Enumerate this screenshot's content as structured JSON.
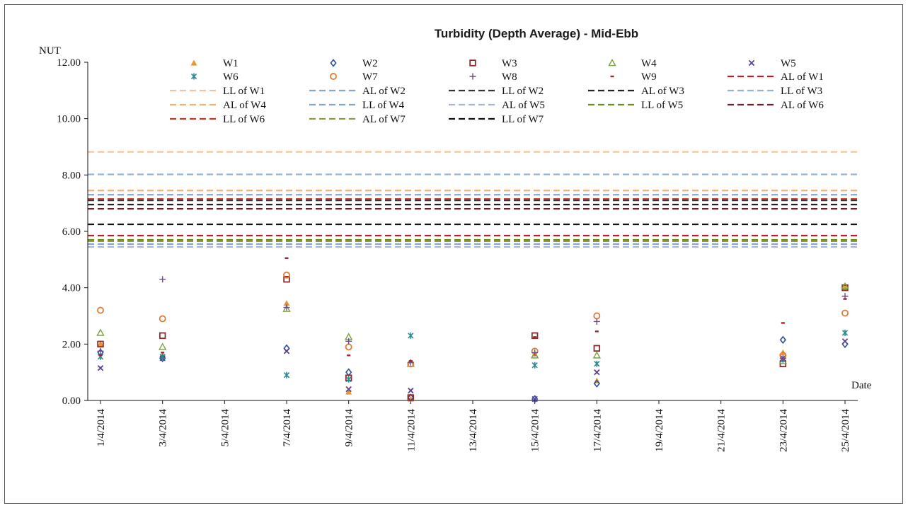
{
  "chart_data": {
    "type": "scatter",
    "title": "Turbidity (Depth Average) - Mid-Ebb",
    "ylabel": "NUT",
    "xlabel": "Date",
    "ylim": [
      0,
      12
    ],
    "y_ticks": [
      "0.00",
      "2.00",
      "4.00",
      "6.00",
      "8.00",
      "10.00",
      "12.00"
    ],
    "x_ticks": [
      "1/4/2014",
      "3/4/2014",
      "5/4/2014",
      "7/4/2014",
      "9/4/2014",
      "11/4/2014",
      "13/4/2014",
      "15/4/2014",
      "17/4/2014",
      "19/4/2014",
      "21/4/2014",
      "23/4/2014",
      "25/4/2014"
    ],
    "x_range_days": [
      1,
      25
    ],
    "grid": false,
    "legend_position": "top",
    "series": [
      {
        "name": "W1",
        "marker": "triangle-filled",
        "color": "#E8962E",
        "points": [
          [
            1,
            2.0
          ],
          [
            3,
            1.6
          ],
          [
            7,
            3.45
          ],
          [
            9,
            0.3
          ],
          [
            11,
            0.05
          ],
          [
            15,
            1.65
          ],
          [
            17,
            0.7
          ],
          [
            23,
            1.7
          ],
          [
            25,
            4.0
          ]
        ]
      },
      {
        "name": "W2",
        "marker": "diamond",
        "color": "#2E4FA0",
        "points": [
          [
            1,
            1.7
          ],
          [
            3,
            1.5
          ],
          [
            7,
            1.85
          ],
          [
            9,
            1.0
          ],
          [
            11,
            0.1
          ],
          [
            15,
            0.05
          ],
          [
            17,
            0.6
          ],
          [
            23,
            2.15
          ],
          [
            25,
            2.0
          ]
        ]
      },
      {
        "name": "W3",
        "marker": "square",
        "color": "#8B2B2B",
        "points": [
          [
            1,
            2.0
          ],
          [
            3,
            2.3
          ],
          [
            7,
            4.3
          ],
          [
            9,
            0.8
          ],
          [
            11,
            0.1
          ],
          [
            15,
            2.3
          ],
          [
            17,
            1.85
          ],
          [
            23,
            1.3
          ],
          [
            25,
            4.0
          ]
        ]
      },
      {
        "name": "W4",
        "marker": "triangle",
        "color": "#7BA23F",
        "points": [
          [
            1,
            2.4
          ],
          [
            3,
            1.9
          ],
          [
            7,
            3.25
          ],
          [
            9,
            2.25
          ],
          [
            11,
            1.3
          ],
          [
            15,
            1.6
          ],
          [
            17,
            1.6
          ],
          [
            23,
            1.4
          ],
          [
            25,
            4.05
          ]
        ]
      },
      {
        "name": "W5",
        "marker": "x",
        "color": "#5A3F8E",
        "points": [
          [
            1,
            1.15
          ],
          [
            3,
            1.5
          ],
          [
            7,
            1.75
          ],
          [
            9,
            0.4
          ],
          [
            11,
            0.35
          ],
          [
            15,
            0.05
          ],
          [
            17,
            1.0
          ],
          [
            23,
            1.5
          ],
          [
            25,
            2.1
          ]
        ]
      },
      {
        "name": "W6",
        "marker": "asterisk",
        "color": "#2A8A93",
        "points": [
          [
            1,
            1.55
          ],
          [
            3,
            1.55
          ],
          [
            7,
            0.9
          ],
          [
            9,
            0.75
          ],
          [
            11,
            2.3
          ],
          [
            15,
            1.25
          ],
          [
            17,
            1.3
          ],
          [
            23,
            1.45
          ],
          [
            25,
            2.4
          ]
        ]
      },
      {
        "name": "W7",
        "marker": "circle",
        "color": "#E07B39",
        "points": [
          [
            1,
            3.2
          ],
          [
            3,
            2.9
          ],
          [
            7,
            4.45
          ],
          [
            9,
            1.9
          ],
          [
            11,
            1.3
          ],
          [
            15,
            1.75
          ],
          [
            17,
            3.0
          ],
          [
            23,
            1.6
          ],
          [
            25,
            3.1
          ]
        ]
      },
      {
        "name": "W8",
        "marker": "plus",
        "color": "#6B4C86",
        "points": [
          [
            1,
            1.75
          ],
          [
            3,
            4.3
          ],
          [
            7,
            3.3
          ],
          [
            9,
            2.1
          ],
          [
            11,
            1.35
          ],
          [
            15,
            1.7
          ],
          [
            17,
            2.8
          ],
          [
            23,
            1.5
          ],
          [
            25,
            3.7
          ]
        ]
      },
      {
        "name": "W9",
        "marker": "dash",
        "color": "#A3242A",
        "points": [
          [
            1,
            1.6
          ],
          [
            3,
            1.7
          ],
          [
            7,
            5.05
          ],
          [
            9,
            1.6
          ],
          [
            11,
            1.4
          ],
          [
            15,
            2.25
          ],
          [
            17,
            2.45
          ],
          [
            23,
            2.75
          ],
          [
            25,
            3.6
          ]
        ]
      }
    ],
    "limit_lines": [
      {
        "name": "AL of W1",
        "value": 5.85,
        "color": "#B22222"
      },
      {
        "name": "LL of W1",
        "value": 8.82,
        "color": "#F2C49A"
      },
      {
        "name": "AL of W2",
        "value": 5.55,
        "color": "#7FA6D6"
      },
      {
        "name": "LL of W2",
        "value": 7.1,
        "color": "#333333"
      },
      {
        "name": "AL of W3",
        "value": 6.95,
        "color": "#222222"
      },
      {
        "name": "LL of W3",
        "value": 8.02,
        "color": "#8FB3D9"
      },
      {
        "name": "AL of W4",
        "value": 7.45,
        "color": "#F0B27A"
      },
      {
        "name": "LL of W4",
        "value": 7.3,
        "color": "#7FA6D6"
      },
      {
        "name": "AL of W5",
        "value": 5.45,
        "color": "#A7B4D2"
      },
      {
        "name": "LL of W5",
        "value": 5.7,
        "color": "#6B8E23"
      },
      {
        "name": "AL of W6",
        "value": 6.8,
        "color": "#6B1F2A"
      },
      {
        "name": "LL of W6",
        "value": 7.15,
        "color": "#C0392B"
      },
      {
        "name": "AL of W7",
        "value": 5.65,
        "color": "#8A9A3C"
      },
      {
        "name": "LL of W7",
        "value": 6.25,
        "color": "#111111"
      }
    ]
  }
}
